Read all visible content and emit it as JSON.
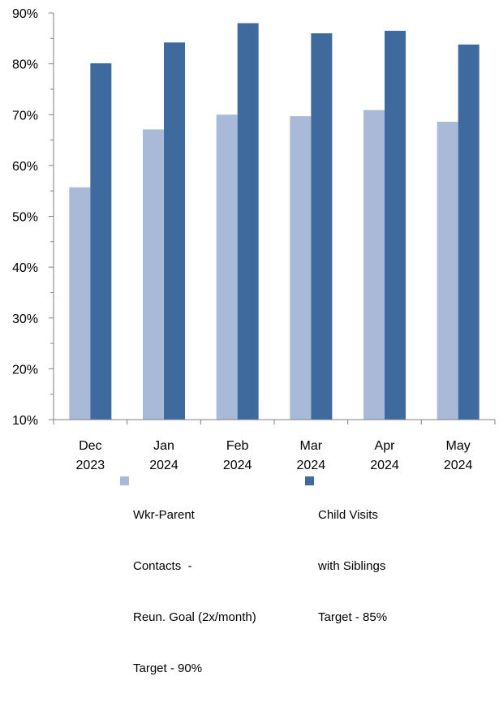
{
  "chart_data": {
    "type": "bar",
    "categories": [
      [
        "Dec",
        "2023"
      ],
      [
        "Jan",
        "2024"
      ],
      [
        "Feb",
        "2024"
      ],
      [
        "Mar",
        "2024"
      ],
      [
        "Apr",
        "2024"
      ],
      [
        "May",
        "2024"
      ]
    ],
    "series": [
      {
        "name": "Wkr-Parent Contacts - Reun. Goal (2x/month) Target - 90%",
        "legend_lines": [
          "Wkr-Parent",
          "Contacts  -",
          "Reun. Goal (2x/month)",
          "Target - 90%"
        ],
        "color": "#A9BAD9",
        "values": [
          55.7,
          67.1,
          70.0,
          69.7,
          70.9,
          68.6
        ]
      },
      {
        "name": "Child Visits with Siblings Target - 85%",
        "legend_lines": [
          "Child Visits",
          "with Siblings",
          "Target - 85%"
        ],
        "color": "#3F6A9E",
        "values": [
          80.1,
          84.2,
          88.0,
          86.0,
          86.5,
          83.8
        ]
      }
    ],
    "y_ticks": [
      "10%",
      "20%",
      "30%",
      "40%",
      "50%",
      "60%",
      "70%",
      "80%",
      "90%"
    ],
    "ylim": [
      10,
      90
    ],
    "ylabel": "",
    "xlabel": "",
    "title": "",
    "grid": false,
    "legend_position": "bottom"
  }
}
